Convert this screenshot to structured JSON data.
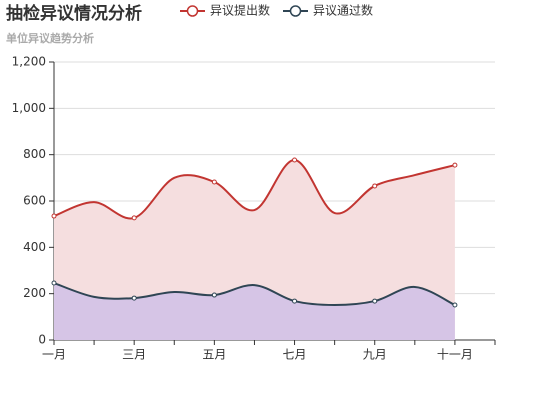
{
  "chart_data": {
    "type": "line",
    "title": "抽检异议情况分析",
    "subtitle": "单位异议趋势分析",
    "categories": [
      "一月",
      null,
      "三月",
      null,
      "五月",
      null,
      "七月",
      null,
      "九月",
      null,
      "十一月",
      null
    ],
    "series": [
      {
        "name": "异议提出数",
        "color": "#c23531",
        "area_color": "#f5dedf",
        "values": [
          535,
          595,
          527,
          700,
          682,
          561,
          777,
          548,
          665,
          712,
          755,
          null
        ]
      },
      {
        "name": "异议通过数",
        "color": "#2f4554",
        "area_color": "#d6c5e6",
        "values": [
          246,
          186,
          181,
          207,
          194,
          237,
          168,
          151,
          168,
          229,
          151,
          null
        ]
      }
    ],
    "ylim": [
      0,
      1200
    ],
    "yticks": [
      0,
      200,
      400,
      600,
      800,
      {
        "value": 1000,
        "label": "1,000"
      },
      {
        "value": 1200,
        "label": "1,200"
      }
    ],
    "grid": true,
    "smooth": true
  }
}
